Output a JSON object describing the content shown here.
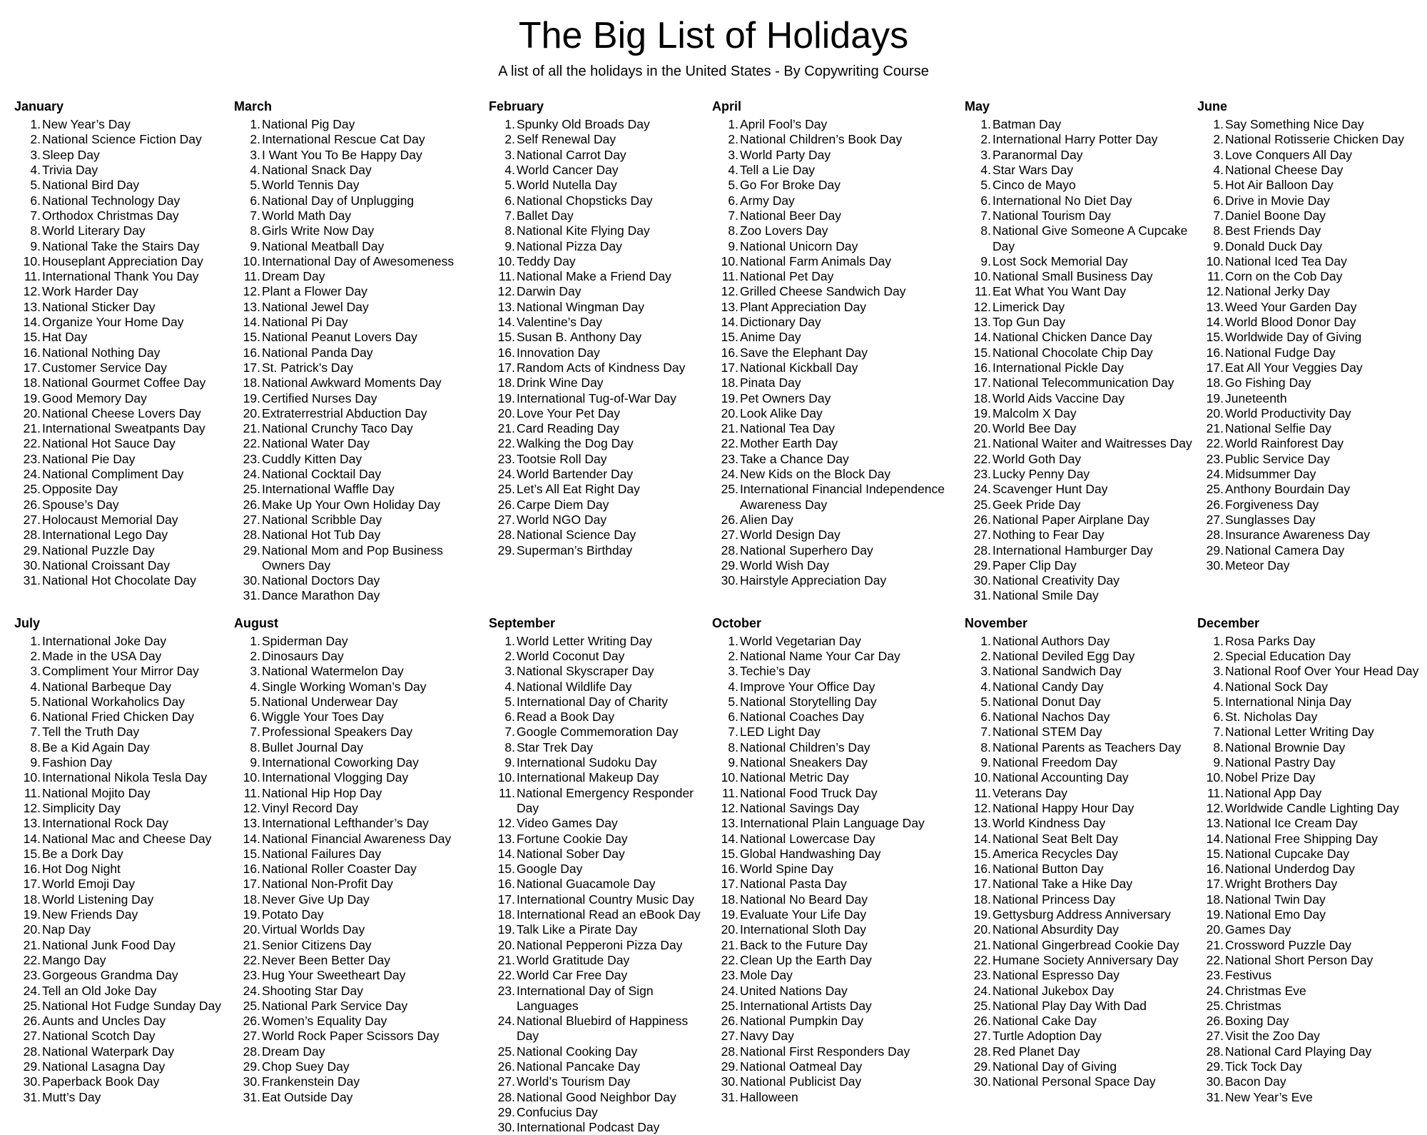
{
  "page": {
    "title": "The Big List of Holidays",
    "subtitle": "A list of all the holidays in the United States - By Copywriting Course"
  },
  "months": [
    {
      "name": "January",
      "items": [
        "New Year’s Day",
        "National Science Fiction Day",
        "Sleep Day",
        "Trivia Day",
        "National Bird Day",
        "National Technology Day",
        "Orthodox Christmas Day",
        "World Literary Day",
        "National Take the Stairs Day",
        "Houseplant Appreciation Day",
        "International Thank You Day",
        "Work Harder Day",
        "National Sticker Day",
        "Organize Your Home Day",
        "Hat Day",
        "National Nothing Day",
        "Customer Service Day",
        "National Gourmet Coffee Day",
        "Good Memory Day",
        "National Cheese Lovers Day",
        "International Sweatpants Day",
        "National Hot Sauce Day",
        "National Pie Day",
        "National Compliment Day",
        "Opposite Day",
        "Spouse’s Day",
        "Holocaust Memorial Day",
        "International Lego Day",
        "National Puzzle Day",
        "National Croissant Day",
        "National Hot Chocolate Day"
      ]
    },
    {
      "name": "March",
      "items": [
        "National Pig Day",
        "International Rescue Cat Day",
        "I Want You To Be Happy Day",
        "National Snack Day",
        "World Tennis Day",
        "National Day of Unplugging",
        "World Math Day",
        "Girls Write Now Day",
        "National Meatball Day",
        "International Day of Awesomeness",
        "Dream Day",
        "Plant a Flower Day",
        "National Jewel Day",
        "National Pi Day",
        "National Peanut Lovers Day",
        "National Panda Day",
        "St. Patrick’s Day",
        "National Awkward Moments Day",
        "Certified Nurses Day",
        "Extraterrestrial Abduction Day",
        "National Crunchy Taco Day",
        "National Water Day",
        "Cuddly Kitten Day",
        "National Cocktail Day",
        "International Waffle Day",
        "Make Up Your Own Holiday Day",
        "National Scribble Day",
        "National Hot Tub Day",
        "National Mom and Pop Business Owners Day",
        "National Doctors Day",
        "Dance Marathon Day"
      ]
    },
    {
      "name": "February",
      "items": [
        "Spunky Old Broads Day",
        "Self Renewal Day",
        "National Carrot Day",
        "World Cancer Day",
        "World Nutella Day",
        "National Chopsticks Day",
        "Ballet Day",
        "National Kite Flying Day",
        "National Pizza Day",
        "Teddy Day",
        "National Make a Friend Day",
        "Darwin Day",
        "National Wingman Day",
        "Valentine’s Day",
        "Susan B. Anthony Day",
        "Innovation Day",
        "Random Acts of Kindness Day",
        "Drink Wine Day",
        "International Tug-of-War Day",
        "Love Your Pet Day",
        "Card Reading Day",
        "Walking the Dog Day",
        "Tootsie Roll Day",
        "World Bartender Day",
        "Let’s All Eat Right Day",
        "Carpe Diem Day",
        "World NGO Day",
        "National Science Day",
        "Superman’s Birthday"
      ]
    },
    {
      "name": "April",
      "items": [
        "April Fool’s Day",
        "National Children’s Book Day",
        "World Party Day",
        "Tell a Lie Day",
        "Go For Broke Day",
        "Army Day",
        "National Beer Day",
        "Zoo Lovers Day",
        "National Unicorn Day",
        "National Farm Animals Day",
        "National Pet Day",
        "Grilled Cheese Sandwich Day",
        "Plant Appreciation Day",
        "Dictionary Day",
        "Anime Day",
        "Save the Elephant Day",
        "National Kickball Day",
        "Pinata Day",
        "Pet Owners Day",
        "Look Alike Day",
        "National Tea Day",
        "Mother Earth Day",
        "Take a Chance Day",
        "New Kids on the Block Day",
        "International Financial Independence Awareness Day",
        "Alien Day",
        "World Design Day",
        "National Superhero Day",
        "World Wish Day",
        "Hairstyle Appreciation Day"
      ]
    },
    {
      "name": "May",
      "items": [
        "Batman Day",
        "International Harry Potter Day",
        "Paranormal Day",
        "Star Wars Day",
        "Cinco de Mayo",
        "International No Diet Day",
        "National Tourism Day",
        "National Give Someone A Cupcake Day",
        "Lost Sock Memorial Day",
        "National Small Business Day",
        "Eat What You Want Day",
        "Limerick Day",
        "Top Gun Day",
        "National Chicken Dance Day",
        "National Chocolate Chip Day",
        "International Pickle Day",
        "National Telecommunication Day",
        "World Aids Vaccine Day",
        "Malcolm X Day",
        "World Bee Day",
        "National Waiter and Waitresses Day",
        "World Goth Day",
        "Lucky Penny Day",
        "Scavenger Hunt Day",
        "Geek Pride Day",
        "National Paper Airplane Day",
        "Nothing to Fear Day",
        "International Hamburger Day",
        "Paper Clip Day",
        "National Creativity Day",
        "National Smile Day"
      ]
    },
    {
      "name": "June",
      "items": [
        "Say Something Nice Day",
        "National Rotisserie Chicken Day",
        "Love Conquers All Day",
        "National Cheese Day",
        "Hot Air Balloon Day",
        "Drive in Movie Day",
        "Daniel Boone Day",
        "Best Friends Day",
        "Donald Duck Day",
        "National Iced Tea Day",
        "Corn on the Cob Day",
        "National Jerky Day",
        "Weed Your Garden Day",
        "World Blood Donor Day",
        "Worldwide Day of Giving",
        "National Fudge Day",
        "Eat All Your Veggies Day",
        "Go Fishing Day",
        "Juneteenth",
        "World Productivity Day",
        "National Selfie Day",
        "World Rainforest Day",
        "Public Service Day",
        "Midsummer Day",
        "Anthony Bourdain Day",
        "Forgiveness Day",
        "Sunglasses Day",
        "Insurance Awareness Day",
        "National Camera Day",
        "Meteor Day"
      ]
    },
    {
      "name": "July",
      "items": [
        "International Joke Day",
        "Made in the USA Day",
        "Compliment Your Mirror Day",
        "National Barbeque Day",
        "National Workaholics Day",
        "National Fried Chicken Day",
        "Tell the Truth Day",
        "Be a Kid Again Day",
        "Fashion Day",
        "International Nikola Tesla Day",
        "National Mojito Day",
        "Simplicity Day",
        "International Rock Day",
        "National Mac and Cheese Day",
        "Be a Dork Day",
        "Hot Dog Night",
        "World Emoji Day",
        "World Listening Day",
        "New Friends Day",
        "Nap Day",
        "National Junk Food Day",
        "Mango Day",
        "Gorgeous Grandma Day",
        "Tell an Old Joke Day",
        "National Hot Fudge Sunday Day",
        "Aunts and Uncles Day",
        "National Scotch Day",
        "National Waterpark Day",
        "National Lasagna Day",
        "Paperback Book Day",
        "Mutt’s Day"
      ]
    },
    {
      "name": "August",
      "items": [
        "Spiderman Day",
        "Dinosaurs Day",
        "National Watermelon Day",
        "Single Working Woman’s Day",
        "National Underwear Day",
        "Wiggle Your Toes Day",
        "Professional Speakers Day",
        "Bullet Journal Day",
        "International Coworking Day",
        "International Vlogging Day",
        "National Hip Hop Day",
        "Vinyl Record Day",
        "International Lefthander’s Day",
        "National Financial Awareness Day",
        "National Failures Day",
        "National Roller Coaster Day",
        "National Non-Profit Day",
        "Never Give Up Day",
        "Potato Day",
        "Virtual Worlds Day",
        "Senior Citizens Day",
        "Never Been Better Day",
        "Hug Your Sweetheart Day",
        "Shooting Star Day",
        "National Park Service Day",
        "Women’s Equality Day",
        "World Rock Paper Scissors Day",
        "Dream Day",
        "Chop Suey Day",
        "Frankenstein Day",
        "Eat Outside Day"
      ]
    },
    {
      "name": "September",
      "items": [
        "World Letter Writing Day",
        "World Coconut Day",
        "National Skyscraper Day",
        "National Wildlife Day",
        "International Day of Charity",
        "Read a Book Day",
        "Google Commemoration Day",
        "Star Trek Day",
        "International Sudoku Day",
        "International Makeup Day",
        "National Emergency Responder Day",
        "Video Games Day",
        "Fortune Cookie Day",
        "National Sober Day",
        "Google Day",
        "National Guacamole Day",
        "International Country Music Day",
        "International Read an eBook Day",
        "Talk Like a Pirate Day",
        "National Pepperoni Pizza Day",
        "World Gratitude Day",
        "World Car Free Day",
        "International Day of Sign Languages",
        "National Bluebird of Happiness Day",
        "National Cooking Day",
        "National Pancake Day",
        "World’s Tourism Day",
        "National Good Neighbor Day",
        "Confucius Day",
        "International Podcast Day"
      ]
    },
    {
      "name": "October",
      "items": [
        "World Vegetarian Day",
        "National Name Your Car Day",
        "Techie’s Day",
        "Improve Your Office Day",
        "National Storytelling Day",
        "National Coaches Day",
        "LED Light Day",
        "National Children’s Day",
        "National Sneakers Day",
        "National Metric Day",
        "National Food Truck Day",
        "National Savings Day",
        "International Plain Language Day",
        "National Lowercase Day",
        "Global Handwashing Day",
        "World Spine Day",
        "National Pasta Day",
        "National No Beard Day",
        "Evaluate Your Life Day",
        "International Sloth Day",
        "Back to the Future Day",
        "Clean Up the Earth Day",
        "Mole Day",
        "United Nations Day",
        "International Artists Day",
        "National Pumpkin Day",
        "Navy Day",
        "National First Responders Day",
        "National Oatmeal Day",
        "National Publicist Day",
        "Halloween"
      ]
    },
    {
      "name": "November",
      "items": [
        "National Authors Day",
        "National Deviled Egg Day",
        "National Sandwich Day",
        "National Candy Day",
        "National Donut Day",
        "National Nachos Day",
        "National STEM Day",
        "National Parents as Teachers Day",
        "National Freedom Day",
        "National Accounting Day",
        "Veterans Day",
        "National Happy Hour Day",
        "World Kindness Day",
        "National Seat Belt Day",
        "America Recycles Day",
        "National Button Day",
        "National Take a Hike Day",
        "National Princess Day",
        "Gettysburg Address Anniversary",
        "National Absurdity Day",
        "National Gingerbread Cookie Day",
        "Humane Society Anniversary Day",
        "National Espresso Day",
        "National Jukebox Day",
        "National Play Day With Dad",
        "National Cake Day",
        "Turtle Adoption Day",
        "Red Planet Day",
        "National Day of Giving",
        "National Personal Space Day"
      ]
    },
    {
      "name": "December",
      "items": [
        "Rosa Parks Day",
        "Special Education Day",
        "National Roof Over Your Head Day",
        "National Sock Day",
        "International Ninja Day",
        "St. Nicholas Day",
        "National Letter Writing Day",
        "National Brownie Day",
        "National Pastry Day",
        "Nobel Prize Day",
        "National App Day",
        "Worldwide Candle Lighting Day",
        "National Ice Cream Day",
        "National Free Shipping Day",
        "National Cupcake Day",
        "National Underdog Day",
        "Wright Brothers Day",
        "National Twin Day",
        "National Emo Day",
        "Games Day",
        "Crossword Puzzle Day",
        "National Short Person Day",
        "Festivus",
        "Christmas Eve",
        "Christmas",
        "Boxing Day",
        "Visit the Zoo Day",
        "National Card Playing Day",
        "Tick Tock Day",
        "Bacon Day",
        "New Year’s Eve"
      ]
    }
  ]
}
